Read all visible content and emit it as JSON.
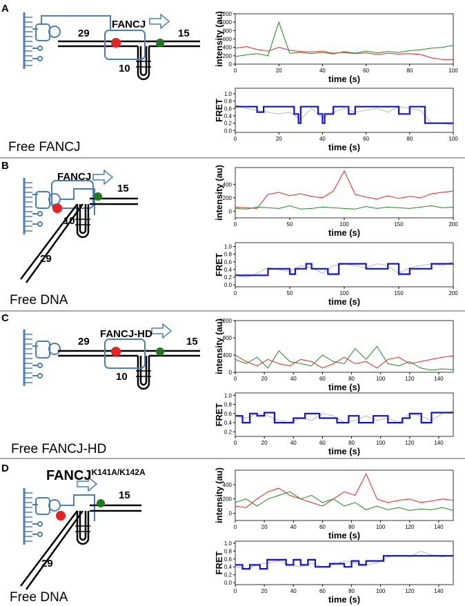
{
  "panels": [
    {
      "letter": "A",
      "protein": "FANCJ",
      "left_number": "29",
      "right_number": "15",
      "hairpin_number": "10",
      "caption": "Free FANCJ"
    },
    {
      "letter": "B",
      "protein": "FANCJ",
      "left_number": "29",
      "right_number": "15",
      "hairpin_number": "10",
      "caption": "Free DNA"
    },
    {
      "letter": "C",
      "protein": "FANCJ-HD",
      "left_number": "29",
      "right_number": "15",
      "hairpin_number": "10",
      "caption": "Free FANCJ-HD"
    },
    {
      "letter": "D",
      "protein": "FANCJ",
      "protein_sup": "K141A/K142A",
      "left_number": "29",
      "right_number": "15",
      "caption": "Free DNA"
    }
  ],
  "chart_data": [
    {
      "type": "line",
      "xlabel": "time (s)",
      "ylabel": "intensity (au)",
      "x": [
        0,
        5,
        10,
        15,
        20,
        25,
        30,
        35,
        40,
        45,
        50,
        55,
        60,
        65,
        70,
        75,
        80,
        85,
        90,
        95,
        100
      ],
      "xlim": [
        0,
        100
      ],
      "xticks": [
        0,
        20,
        40,
        60,
        80,
        100
      ],
      "ylim": [
        0,
        1200
      ],
      "yticks": [
        0,
        200,
        400,
        600,
        800,
        1000,
        1200
      ],
      "series": [
        {
          "color": "#e8231f",
          "values": [
            380,
            420,
            350,
            310,
            400,
            330,
            300,
            290,
            310,
            260,
            280,
            250,
            270,
            230,
            260,
            240,
            250,
            230,
            150,
            110,
            110
          ]
        },
        {
          "color": "#1e8a1e",
          "values": [
            180,
            220,
            250,
            200,
            1000,
            260,
            280,
            250,
            280,
            240,
            300,
            260,
            310,
            270,
            300,
            280,
            320,
            340,
            380,
            400,
            450
          ]
        }
      ]
    },
    {
      "type": "line",
      "xlabel": "time (s)",
      "ylabel": "FRET",
      "x": [
        0,
        5,
        10,
        15,
        20,
        25,
        30,
        35,
        40,
        45,
        50,
        55,
        60,
        65,
        70,
        75,
        80,
        85,
        90,
        95,
        100
      ],
      "xlim": [
        0,
        100
      ],
      "xticks": [
        0,
        20,
        40,
        60,
        80,
        100
      ],
      "ylim": [
        -0.05,
        1.15
      ],
      "yticks": [
        {
          "value": 0,
          "label": "0.0"
        },
        0.2,
        0.4,
        0.6,
        0.8,
        {
          "value": 1,
          "label": "1.0"
        }
      ],
      "series": [
        {
          "color": "#b8b8b8",
          "values": [
            0.7,
            0.6,
            0.55,
            0.5,
            0.45,
            0.5,
            0.3,
            0.6,
            0.35,
            0.5,
            0.6,
            0.5,
            0.55,
            0.6,
            0.5,
            0.65,
            0.6,
            0.55,
            0.2,
            0.2,
            0.15
          ]
        },
        {
          "color": "#1010e0",
          "x": [
            0,
            10,
            10,
            13,
            13,
            27,
            27,
            29,
            29,
            30,
            30,
            38,
            38,
            40,
            40,
            41,
            41,
            45,
            45,
            52,
            52,
            55,
            55,
            75,
            75,
            80,
            80,
            87,
            87,
            100
          ],
          "values": [
            0.65,
            0.65,
            0.5,
            0.5,
            0.65,
            0.65,
            0.45,
            0.45,
            0.2,
            0.2,
            0.65,
            0.65,
            0.45,
            0.45,
            0.2,
            0.2,
            0.45,
            0.45,
            0.65,
            0.65,
            0.45,
            0.45,
            0.65,
            0.65,
            0.45,
            0.45,
            0.65,
            0.65,
            0.2,
            0.2
          ]
        }
      ]
    },
    {
      "type": "line",
      "xlabel": "time (s)",
      "ylabel": "intensity (au)",
      "x": [
        0,
        10,
        20,
        30,
        40,
        50,
        60,
        70,
        80,
        90,
        100,
        110,
        120,
        130,
        140,
        150,
        160,
        170,
        180,
        190,
        200
      ],
      "xlim": [
        0,
        200
      ],
      "xticks": [
        0,
        50,
        100,
        150,
        200
      ],
      "ylim": [
        -100,
        650
      ],
      "yticks": [
        0,
        200,
        400
      ],
      "series": [
        {
          "color": "#e8231f",
          "values": [
            60,
            50,
            40,
            250,
            280,
            230,
            260,
            220,
            200,
            300,
            600,
            250,
            210,
            180,
            230,
            190,
            220,
            200,
            260,
            280,
            300
          ]
        },
        {
          "color": "#1e8a1e",
          "values": [
            40,
            30,
            60,
            50,
            40,
            80,
            30,
            40,
            60,
            50,
            40,
            30,
            70,
            40,
            60,
            50,
            40,
            60,
            80,
            50,
            60
          ]
        }
      ]
    },
    {
      "type": "line",
      "xlabel": "time (s)",
      "ylabel": "FRET",
      "x": [
        0,
        10,
        20,
        30,
        40,
        50,
        60,
        70,
        80,
        90,
        100,
        110,
        120,
        130,
        140,
        150,
        160,
        170,
        180,
        190,
        200
      ],
      "xlim": [
        0,
        200
      ],
      "xticks": [
        0,
        50,
        100,
        150,
        200
      ],
      "ylim": [
        -0.05,
        1.1
      ],
      "yticks": [
        {
          "value": 0,
          "label": "0.0"
        },
        0.2,
        0.4,
        0.6,
        0.8,
        {
          "value": 1,
          "label": "1.0"
        }
      ],
      "series": [
        {
          "color": "#b8b8b8",
          "values": [
            0.25,
            0.2,
            0.3,
            0.45,
            0.4,
            0.35,
            0.5,
            0.45,
            0.3,
            0.5,
            0.55,
            0.5,
            0.45,
            0.55,
            0.5,
            0.3,
            0.45,
            0.5,
            0.55,
            0.5,
            0.6
          ]
        },
        {
          "color": "#1010e0",
          "x": [
            0,
            30,
            30,
            50,
            50,
            55,
            55,
            65,
            65,
            70,
            70,
            85,
            85,
            95,
            95,
            120,
            120,
            140,
            140,
            150,
            150,
            160,
            160,
            180,
            180,
            200
          ],
          "values": [
            0.25,
            0.25,
            0.42,
            0.42,
            0.28,
            0.28,
            0.42,
            0.42,
            0.55,
            0.55,
            0.42,
            0.42,
            0.28,
            0.28,
            0.55,
            0.55,
            0.42,
            0.42,
            0.55,
            0.55,
            0.28,
            0.28,
            0.42,
            0.42,
            0.55,
            0.55
          ]
        }
      ]
    },
    {
      "type": "line",
      "xlabel": "time (s)",
      "ylabel": "intensity (au)",
      "x": [
        0,
        7.5,
        15,
        22.5,
        30,
        37.5,
        45,
        52.5,
        60,
        67.5,
        75,
        82.5,
        90,
        97.5,
        105,
        112.5,
        120,
        127.5,
        135,
        142.5,
        150
      ],
      "xlim": [
        0,
        150
      ],
      "xticks": [
        0,
        20,
        40,
        60,
        80,
        100,
        120,
        140
      ],
      "ylim": [
        0,
        1200
      ],
      "yticks": [
        0,
        400,
        800,
        1200
      ],
      "series": [
        {
          "color": "#e8231f",
          "values": [
            400,
            250,
            150,
            300,
            200,
            150,
            300,
            250,
            100,
            200,
            350,
            200,
            250,
            100,
            300,
            350,
            200,
            250,
            300,
            350,
            380
          ]
        },
        {
          "color": "#1e8a1e",
          "values": [
            300,
            200,
            350,
            100,
            500,
            250,
            200,
            150,
            400,
            250,
            200,
            550,
            300,
            600,
            200,
            150,
            250,
            100,
            50,
            80,
            60
          ]
        }
      ]
    },
    {
      "type": "line",
      "xlabel": "time (s)",
      "ylabel": "FRET",
      "x": [
        0,
        7.5,
        15,
        22.5,
        30,
        37.5,
        45,
        52.5,
        60,
        67.5,
        75,
        82.5,
        90,
        97.5,
        105,
        112.5,
        120,
        127.5,
        135,
        142.5,
        150
      ],
      "xlim": [
        0,
        150
      ],
      "xticks": [
        0,
        20,
        40,
        60,
        80,
        100,
        120,
        140
      ],
      "ylim": [
        0.1,
        1.05
      ],
      "yticks": [
        0.2,
        0.4,
        0.6,
        0.8,
        {
          "value": 1,
          "label": "1.0"
        }
      ],
      "series": [
        {
          "color": "#b8b8b8",
          "values": [
            0.55,
            0.5,
            0.6,
            0.55,
            0.45,
            0.4,
            0.5,
            0.45,
            0.6,
            0.55,
            0.4,
            0.45,
            0.55,
            0.45,
            0.5,
            0.4,
            0.6,
            0.55,
            0.45,
            0.6,
            0.65
          ]
        },
        {
          "color": "#1010e0",
          "x": [
            0,
            5,
            5,
            10,
            10,
            15,
            15,
            20,
            20,
            27,
            27,
            40,
            40,
            48,
            48,
            58,
            58,
            70,
            70,
            78,
            78,
            85,
            85,
            95,
            95,
            105,
            105,
            115,
            115,
            120,
            120,
            128,
            128,
            135,
            135,
            150
          ],
          "values": [
            0.55,
            0.55,
            0.4,
            0.4,
            0.6,
            0.6,
            0.55,
            0.55,
            0.62,
            0.62,
            0.4,
            0.4,
            0.5,
            0.5,
            0.6,
            0.6,
            0.5,
            0.5,
            0.4,
            0.4,
            0.55,
            0.55,
            0.4,
            0.4,
            0.55,
            0.55,
            0.4,
            0.4,
            0.5,
            0.5,
            0.6,
            0.6,
            0.4,
            0.4,
            0.62,
            0.62
          ]
        }
      ]
    },
    {
      "type": "line",
      "xlabel": "time (s)",
      "ylabel": "intensity (au)",
      "x": [
        0,
        7.5,
        15,
        22.5,
        30,
        37.5,
        45,
        52.5,
        60,
        67.5,
        75,
        82.5,
        90,
        97.5,
        105,
        112.5,
        120,
        127.5,
        135,
        142.5,
        150
      ],
      "xlim": [
        0,
        150
      ],
      "xticks": [
        0,
        20,
        40,
        60,
        80,
        100,
        120,
        140
      ],
      "ylim": [
        -100,
        600
      ],
      "yticks": [
        0,
        200,
        400
      ],
      "series": [
        {
          "color": "#e8231f",
          "values": [
            100,
            80,
            200,
            300,
            350,
            250,
            200,
            150,
            100,
            200,
            300,
            250,
            550,
            200,
            150,
            180,
            200,
            150,
            170,
            200,
            180
          ]
        },
        {
          "color": "#1e8a1e",
          "values": [
            150,
            200,
            100,
            200,
            250,
            300,
            200,
            250,
            150,
            200,
            100,
            150,
            50,
            100,
            50,
            80,
            40,
            60,
            50,
            80,
            40
          ]
        }
      ]
    },
    {
      "type": "line",
      "xlabel": "time (s)",
      "ylabel": "FRET",
      "x": [
        0,
        7.5,
        15,
        22.5,
        30,
        37.5,
        45,
        52.5,
        60,
        67.5,
        75,
        82.5,
        90,
        97.5,
        105,
        112.5,
        120,
        127.5,
        135,
        142.5,
        150
      ],
      "xlim": [
        0,
        150
      ],
      "xticks": [
        0,
        20,
        40,
        60,
        80,
        100,
        120,
        140
      ],
      "ylim": [
        -0.05,
        1.05
      ],
      "yticks": [
        {
          "value": 0,
          "label": "0.0"
        },
        0.2,
        0.4,
        0.6,
        0.8,
        {
          "value": 1,
          "label": "1.0"
        }
      ],
      "series": [
        {
          "color": "#b8b8b8",
          "values": [
            0.4,
            0.35,
            0.45,
            0.5,
            0.55,
            0.45,
            0.4,
            0.5,
            0.4,
            0.45,
            0.55,
            0.5,
            0.45,
            0.5,
            0.65,
            0.7,
            0.65,
            0.8,
            0.7,
            0.65,
            0.7
          ]
        },
        {
          "color": "#1010e0",
          "x": [
            0,
            5,
            5,
            10,
            10,
            17,
            17,
            22,
            22,
            35,
            35,
            40,
            40,
            45,
            45,
            50,
            50,
            55,
            55,
            65,
            65,
            75,
            75,
            80,
            80,
            85,
            85,
            90,
            90,
            102,
            102,
            150
          ],
          "values": [
            0.45,
            0.45,
            0.35,
            0.35,
            0.45,
            0.45,
            0.35,
            0.35,
            0.58,
            0.58,
            0.45,
            0.45,
            0.58,
            0.58,
            0.45,
            0.45,
            0.58,
            0.58,
            0.4,
            0.4,
            0.48,
            0.48,
            0.4,
            0.4,
            0.55,
            0.55,
            0.45,
            0.45,
            0.55,
            0.55,
            0.68,
            0.68
          ]
        }
      ]
    }
  ]
}
